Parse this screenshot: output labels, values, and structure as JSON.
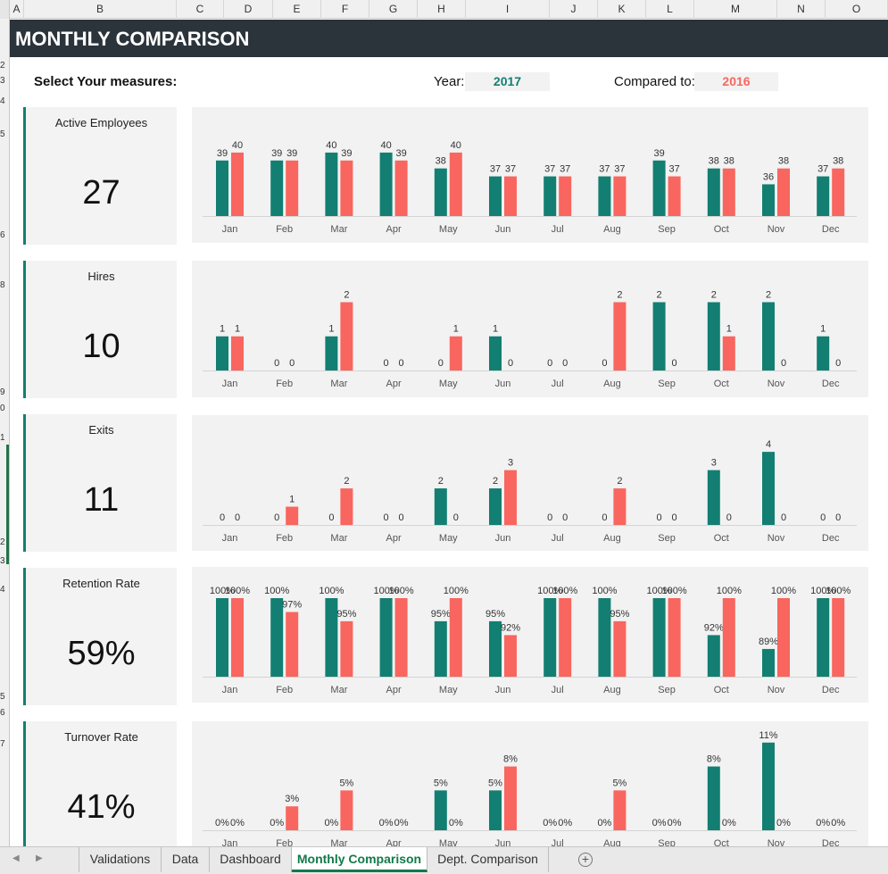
{
  "columns": [
    "A",
    "B",
    "C",
    "D",
    "E",
    "F",
    "G",
    "H",
    "I",
    "J",
    "K",
    "L",
    "M",
    "N",
    "O"
  ],
  "row_numbers": [
    "2",
    "3",
    "4",
    "5",
    "6",
    "8",
    "9",
    "0",
    "1",
    "2",
    "3",
    "4",
    "5",
    "6",
    "7"
  ],
  "title": "MONTHLY COMPARISON",
  "controls": {
    "select_label": "Select Your measures:",
    "year_label": "Year:",
    "year_value": "2017",
    "compared_label": "Compared to:",
    "compared_value": "2016"
  },
  "colors": {
    "current": "#127f72",
    "previous": "#f8665f",
    "title_bg": "#2b333b",
    "panel_bg": "#f2f2f2",
    "accent": "#127a4a"
  },
  "measures": [
    {
      "name": "Active Employees",
      "value": "27"
    },
    {
      "name": "Hires",
      "value": "10"
    },
    {
      "name": "Exits",
      "value": "11"
    },
    {
      "name": "Retention Rate",
      "value": "59%"
    },
    {
      "name": "Turnover Rate",
      "value": "41%"
    }
  ],
  "chart_data": [
    {
      "type": "bar",
      "categories": [
        "Jan",
        "Feb",
        "Mar",
        "Apr",
        "May",
        "Jun",
        "Jul",
        "Aug",
        "Sep",
        "Oct",
        "Nov",
        "Dec"
      ],
      "series": [
        {
          "values": [
            39,
            39,
            40,
            40,
            38,
            37,
            37,
            37,
            39,
            38,
            36,
            37
          ]
        },
        {
          "values": [
            40,
            39,
            39,
            39,
            40,
            37,
            37,
            37,
            37,
            38,
            38,
            38
          ]
        }
      ],
      "labels": [
        [
          "39",
          "39",
          "40",
          "40",
          "38",
          "37",
          "37",
          "37",
          "39",
          "38",
          "36",
          "37"
        ],
        [
          "40",
          "39",
          "39",
          "39",
          "40",
          "37",
          "37",
          "37",
          "37",
          "38",
          "38",
          "38"
        ]
      ],
      "ylim": [
        32,
        41
      ]
    },
    {
      "type": "bar",
      "categories": [
        "Jan",
        "Feb",
        "Mar",
        "Apr",
        "May",
        "Jun",
        "Jul",
        "Aug",
        "Sep",
        "Oct",
        "Nov",
        "Dec"
      ],
      "series": [
        {
          "values": [
            1,
            0,
            1,
            0,
            0,
            1,
            0,
            0,
            2,
            2,
            2,
            1
          ]
        },
        {
          "values": [
            1,
            0,
            2,
            0,
            1,
            0,
            0,
            2,
            0,
            1,
            0,
            0
          ]
        }
      ],
      "labels": [
        [
          "1",
          "0",
          "1",
          "0",
          "0",
          "1",
          "0",
          "0",
          "2",
          "2",
          "2",
          "1"
        ],
        [
          "1",
          "0",
          "2",
          "0",
          "1",
          "0",
          "0",
          "2",
          "0",
          "1",
          "0",
          "0"
        ]
      ],
      "ylim": [
        0,
        2.3
      ]
    },
    {
      "type": "bar",
      "categories": [
        "Jan",
        "Feb",
        "Mar",
        "Apr",
        "May",
        "Jun",
        "Jul",
        "Aug",
        "Sep",
        "Oct",
        "Nov",
        "Dec"
      ],
      "series": [
        {
          "values": [
            0,
            0,
            0,
            0,
            2,
            2,
            0,
            0,
            0,
            3,
            4,
            0
          ]
        },
        {
          "values": [
            0,
            1,
            2,
            0,
            0,
            3,
            0,
            2,
            0,
            0,
            0,
            0
          ]
        }
      ],
      "labels": [
        [
          "0",
          "0",
          "0",
          "0",
          "2",
          "2",
          "0",
          "0",
          "0",
          "3",
          "4",
          "0"
        ],
        [
          "0",
          "1",
          "2",
          "0",
          "0",
          "3",
          "0",
          "2",
          "0",
          "0",
          "0",
          "0"
        ]
      ],
      "ylim": [
        0,
        4.3
      ]
    },
    {
      "type": "bar",
      "categories": [
        "Jan",
        "Feb",
        "Mar",
        "Apr",
        "May",
        "Jun",
        "Jul",
        "Aug",
        "Sep",
        "Oct",
        "Nov",
        "Dec"
      ],
      "series": [
        {
          "values": [
            100,
            100,
            100,
            100,
            95,
            95,
            100,
            100,
            100,
            92,
            89,
            100
          ]
        },
        {
          "values": [
            100,
            97,
            95,
            100,
            100,
            92,
            100,
            95,
            100,
            100,
            100,
            100
          ]
        }
      ],
      "labels": [
        [
          "100%",
          "100%",
          "100%",
          "100%",
          "95%",
          "95%",
          "100%",
          "100%",
          "100%",
          "92%",
          "89%",
          "100%"
        ],
        [
          "100%",
          "97%",
          "95%",
          "100%",
          "100%",
          "92%",
          "100%",
          "95%",
          "100%",
          "100%",
          "100%",
          "100%"
        ]
      ],
      "ylim": [
        83,
        100
      ]
    },
    {
      "type": "bar",
      "categories": [
        "Jan",
        "Feb",
        "Mar",
        "Apr",
        "May",
        "Jun",
        "Jul",
        "Aug",
        "Sep",
        "Oct",
        "Nov",
        "Dec"
      ],
      "series": [
        {
          "values": [
            0,
            0,
            0,
            0,
            5,
            5,
            0,
            0,
            0,
            8,
            11,
            0
          ]
        },
        {
          "values": [
            0,
            3,
            5,
            0,
            0,
            8,
            0,
            5,
            0,
            0,
            0,
            0
          ]
        }
      ],
      "labels": [
        [
          "0%",
          "0%",
          "0%",
          "0%",
          "5%",
          "5%",
          "0%",
          "0%",
          "0%",
          "8%",
          "11%",
          "0%"
        ],
        [
          "0%",
          "3%",
          "5%",
          "0%",
          "0%",
          "8%",
          "0%",
          "5%",
          "0%",
          "0%",
          "0%",
          "0%"
        ]
      ],
      "ylim": [
        0,
        11.2
      ]
    }
  ],
  "tabs": {
    "items": [
      "Validations",
      "Data",
      "Dashboard",
      "Monthly Comparison",
      "Dept. Comparison"
    ],
    "active": "Monthly Comparison",
    "add_icon": "plus-circle-icon",
    "nav_prev_icon": "arrow-left-icon",
    "nav_next_icon": "arrow-right-icon"
  }
}
